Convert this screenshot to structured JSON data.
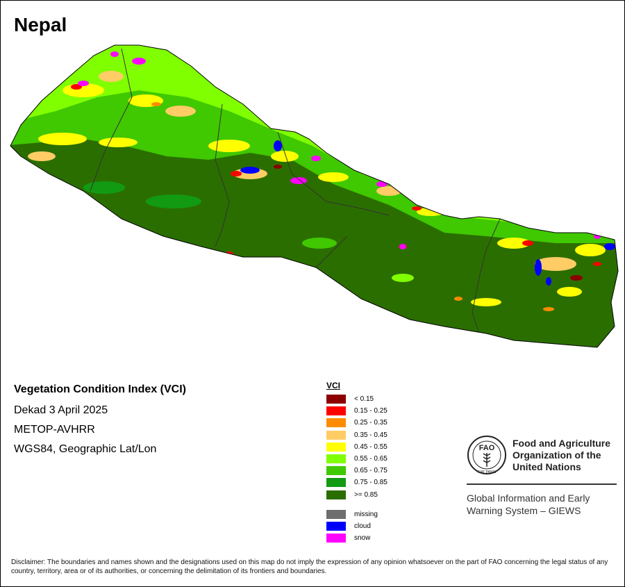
{
  "map": {
    "title": "Nepal"
  },
  "info": {
    "title": "Vegetation Condition Index (VCI)",
    "lines": [
      "Dekad 3 April 2025",
      "METOP-AVHRR",
      "WGS84, Geographic Lat/Lon"
    ]
  },
  "legend": {
    "title": "VCI",
    "classes": [
      {
        "label": "< 0.15",
        "color": "#8b0000"
      },
      {
        "label": "0.15 - 0.25",
        "color": "#ff0000"
      },
      {
        "label": "0.25 - 0.35",
        "color": "#ff8c00"
      },
      {
        "label": "0.35 - 0.45",
        "color": "#ffcc66"
      },
      {
        "label": "0.45 - 0.55",
        "color": "#ffff00"
      },
      {
        "label": "0.55 - 0.65",
        "color": "#80ff00"
      },
      {
        "label": "0.65 - 0.75",
        "color": "#40c800"
      },
      {
        "label": "0.75 - 0.85",
        "color": "#129a12"
      },
      {
        "label": ">= 0.85",
        "color": "#2b6e00"
      }
    ],
    "extra": [
      {
        "label": "missing",
        "color": "#6e6e6e"
      },
      {
        "label": "cloud",
        "color": "#0000ff"
      },
      {
        "label": "snow",
        "color": "#ff00ff"
      }
    ]
  },
  "org": {
    "name_lines": [
      "Food and Agriculture",
      "Organization of the",
      "United Nations"
    ],
    "logo_text": "FAO",
    "logo_motto": "FIAT PANIS",
    "system_lines": [
      "Global Information and Early",
      "Warning System – GIEWS"
    ]
  },
  "disclaimer": "Disclaimer: The boundaries and names shown and the designations used on this map do not imply the expression of any opinion whatsoever on the part of FAO concerning the legal status of any country, territory, area or of its authorities, or concerning the delimitation of its frontiers and boundaries."
}
